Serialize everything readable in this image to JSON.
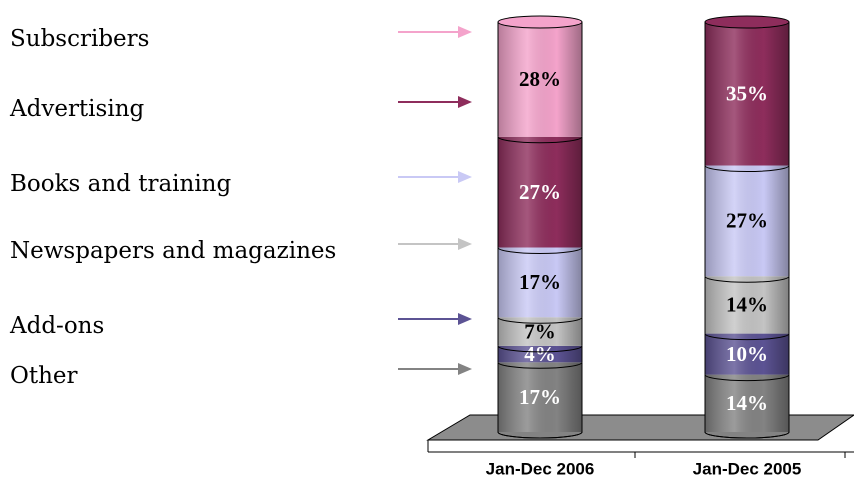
{
  "chart_data": {
    "type": "stacked_bar",
    "categories": [
      "Jan-Dec 2006",
      "Jan-Dec 2005"
    ],
    "ylim": [
      0,
      100
    ],
    "series": [
      {
        "name": "Subscribers",
        "color": "#f4a3cb",
        "label_color": "#000000",
        "values": [
          28,
          null
        ],
        "value_labels": [
          "28%",
          null
        ]
      },
      {
        "name": "Advertising",
        "color": "#8e2d5c",
        "label_color": "#ffffff",
        "values": [
          27,
          35
        ],
        "value_labels": [
          "27%",
          "35%"
        ]
      },
      {
        "name": "Books and training",
        "color": "#c9c9f5",
        "label_color": "#000000",
        "values": [
          17,
          27
        ],
        "value_labels": [
          "17%",
          "27%"
        ]
      },
      {
        "name": "Newspapers and magazines",
        "color": "#c4c4c4",
        "label_color": "#000000",
        "values": [
          7,
          14
        ],
        "value_labels": [
          "7%",
          "14%"
        ]
      },
      {
        "name": "Add-ons",
        "color": "#5c5394",
        "label_color": "#ffffff",
        "values": [
          4,
          10
        ],
        "value_labels": [
          "4%",
          "10%"
        ]
      },
      {
        "name": "Other",
        "color": "#838383",
        "label_color": "#ffffff",
        "values": [
          17,
          14
        ],
        "value_labels": [
          "17%",
          "14%"
        ]
      }
    ]
  }
}
